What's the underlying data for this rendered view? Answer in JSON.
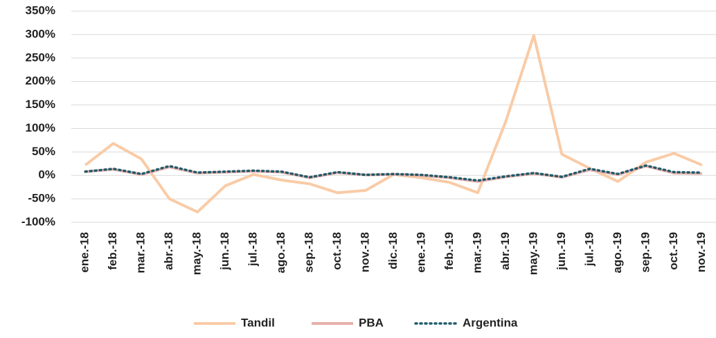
{
  "chart_data": {
    "type": "line",
    "categories": [
      "ene.-18",
      "feb.-18",
      "mar.-18",
      "abr.-18",
      "may.-18",
      "jun.-18",
      "jul.-18",
      "ago.-18",
      "sep.-18",
      "oct.-18",
      "nov.-18",
      "dic.-18",
      "ene.-19",
      "feb.-19",
      "mar.-19",
      "abr.-19",
      "may.-19",
      "jun.-19",
      "jul.-19",
      "ago.-19",
      "sep.-19",
      "oct.-19",
      "nov.-19"
    ],
    "series": [
      {
        "name": "Tandil",
        "color": "#f9cba6",
        "dash": "solid",
        "values": [
          22,
          68,
          35,
          -50,
          -78,
          -22,
          2,
          -10,
          -18,
          -37,
          -32,
          2,
          -5,
          -15,
          -37,
          115,
          298,
          45,
          15,
          -13,
          28,
          47,
          22
        ]
      },
      {
        "name": "PBA",
        "color": "#e6b0aa",
        "dash": "solid",
        "values": [
          8,
          13,
          2,
          18,
          5,
          7,
          9,
          7,
          -5,
          6,
          1,
          2,
          0,
          -5,
          -13,
          -3,
          4,
          -4,
          12,
          2,
          20,
          5,
          4
        ]
      },
      {
        "name": "Argentina",
        "color": "#1f5b6b",
        "dash": "dotted",
        "values": [
          8,
          14,
          3,
          20,
          6,
          8,
          10,
          8,
          -4,
          7,
          1,
          3,
          1,
          -4,
          -11,
          -2,
          5,
          -3,
          14,
          3,
          21,
          7,
          6
        ]
      }
    ],
    "ylim": [
      -100,
      350
    ],
    "yticks": [
      {
        "value": -100,
        "label": "-100%"
      },
      {
        "value": -50,
        "label": "-50%"
      },
      {
        "value": 0,
        "label": "0%"
      },
      {
        "value": 50,
        "label": "50%"
      },
      {
        "value": 100,
        "label": "100%"
      },
      {
        "value": 150,
        "label": "150%"
      },
      {
        "value": 200,
        "label": "200%"
      },
      {
        "value": 250,
        "label": "250%"
      },
      {
        "value": 300,
        "label": "300%"
      },
      {
        "value": 350,
        "label": "350%"
      }
    ],
    "grid": true,
    "legend": "bottom"
  }
}
